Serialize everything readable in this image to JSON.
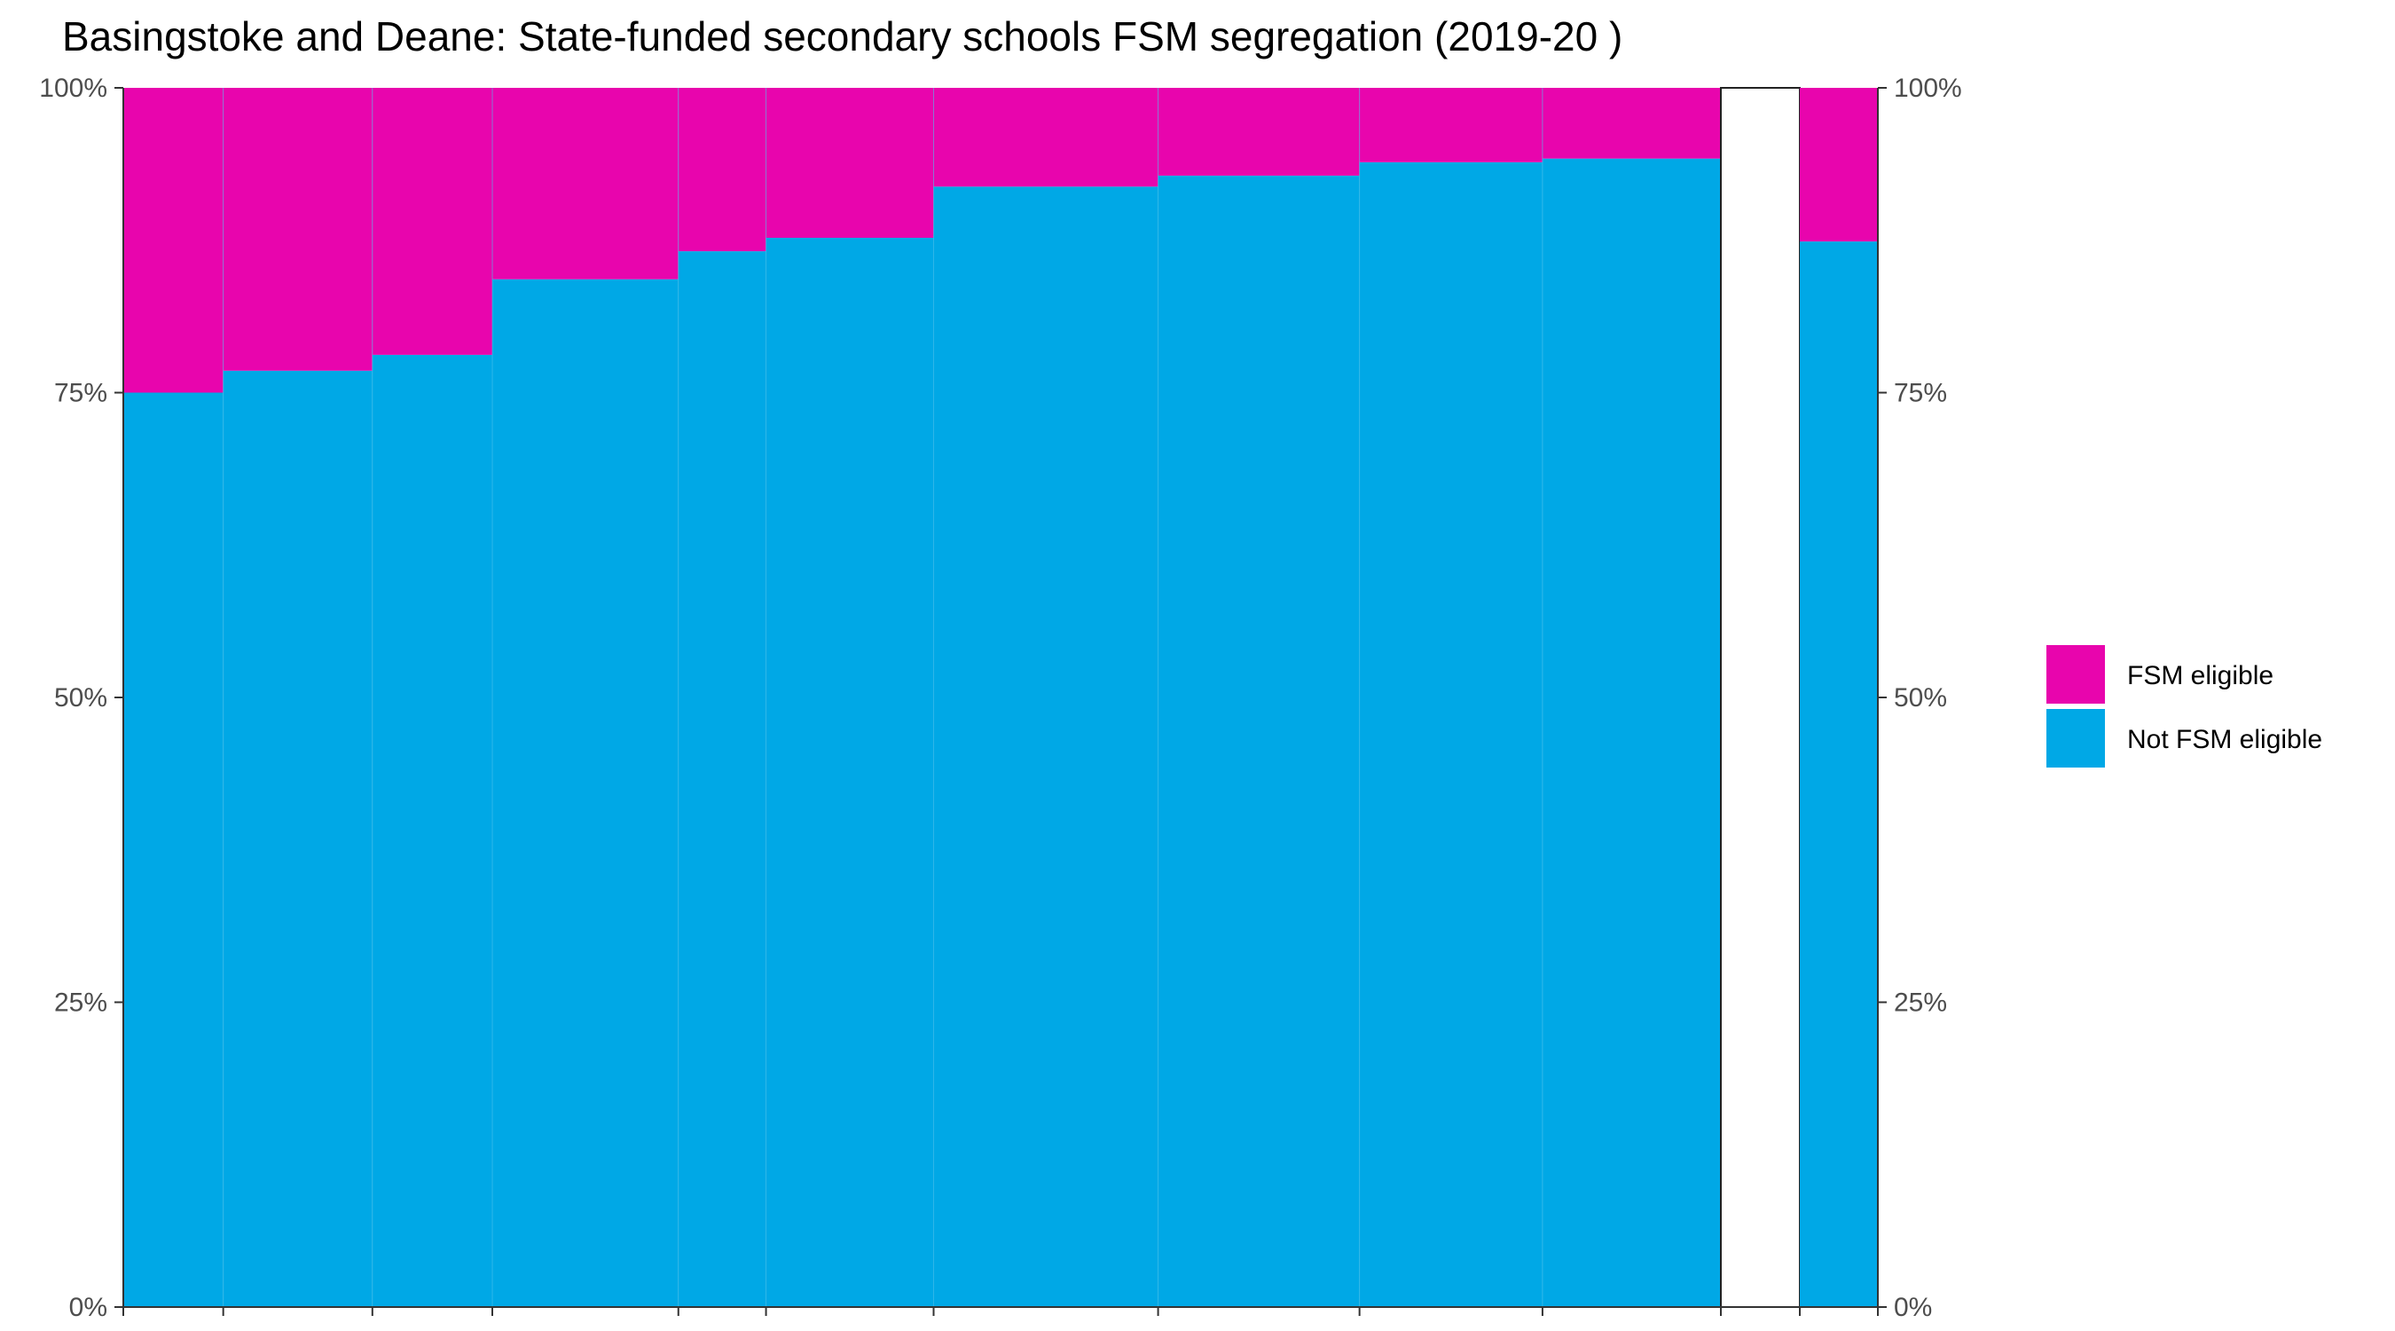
{
  "chart_data": {
    "type": "bar",
    "title": "Basingstoke and Deane: State-funded secondary schools FSM segregation (2019-20 )",
    "xlabel": "",
    "ylabel": "",
    "ylim": [
      0,
      100
    ],
    "y_ticks": [
      "0%",
      "25%",
      "50%",
      "75%",
      "100%"
    ],
    "grid": false,
    "legend_position": "right",
    "colors": {
      "fsm": "#E805AD",
      "not_fsm": "#00A8E6"
    },
    "series_names": [
      "FSM eligible",
      "Not FSM eligible"
    ],
    "bars": [
      {
        "width": 65,
        "not_fsm": 75.0,
        "fsm": 25.0
      },
      {
        "width": 97,
        "not_fsm": 76.8,
        "fsm": 23.2
      },
      {
        "width": 78,
        "not_fsm": 78.1,
        "fsm": 21.9
      },
      {
        "width": 121,
        "not_fsm": 84.3,
        "fsm": 15.7
      },
      {
        "width": 57,
        "not_fsm": 86.6,
        "fsm": 13.4
      },
      {
        "width": 109,
        "not_fsm": 87.7,
        "fsm": 12.3
      },
      {
        "width": 146,
        "not_fsm": 91.9,
        "fsm": 8.1
      },
      {
        "width": 131,
        "not_fsm": 92.8,
        "fsm": 7.2
      },
      {
        "width": 119,
        "not_fsm": 93.9,
        "fsm": 6.1
      },
      {
        "width": 116,
        "not_fsm": 94.2,
        "fsm": 5.8
      }
    ],
    "summary_bar": {
      "not_fsm": 87.4,
      "fsm": 12.6
    }
  }
}
